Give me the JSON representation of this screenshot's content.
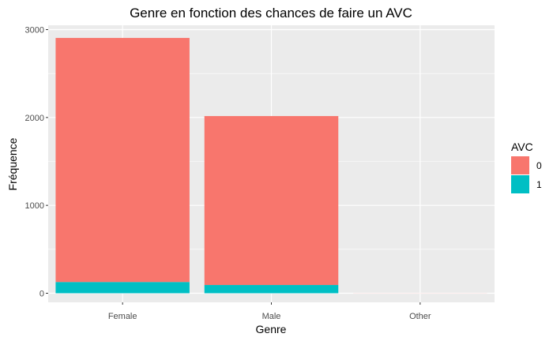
{
  "chart_data": {
    "type": "bar",
    "stacked": true,
    "title": "Genre en fonction des chances de faire un AVC",
    "xlabel": "Genre",
    "ylabel": "Fréquence",
    "categories": [
      "Female",
      "Male",
      "Other"
    ],
    "ylim": [
      0,
      3000
    ],
    "yticks": [
      {
        "value": 0,
        "label": "0"
      },
      {
        "value": 1000,
        "label": "1000"
      },
      {
        "value": 2000,
        "label": "2000"
      },
      {
        "value": 3000,
        "label": "3000"
      }
    ],
    "series": [
      {
        "name": "0",
        "color": "#F8766D",
        "values": [
          2777,
          1922,
          1
        ]
      },
      {
        "name": "1",
        "color": "#00BFC4",
        "values": [
          128,
          94,
          0
        ]
      }
    ],
    "legend": {
      "title": "AVC",
      "placement": "right"
    },
    "grid": true
  }
}
